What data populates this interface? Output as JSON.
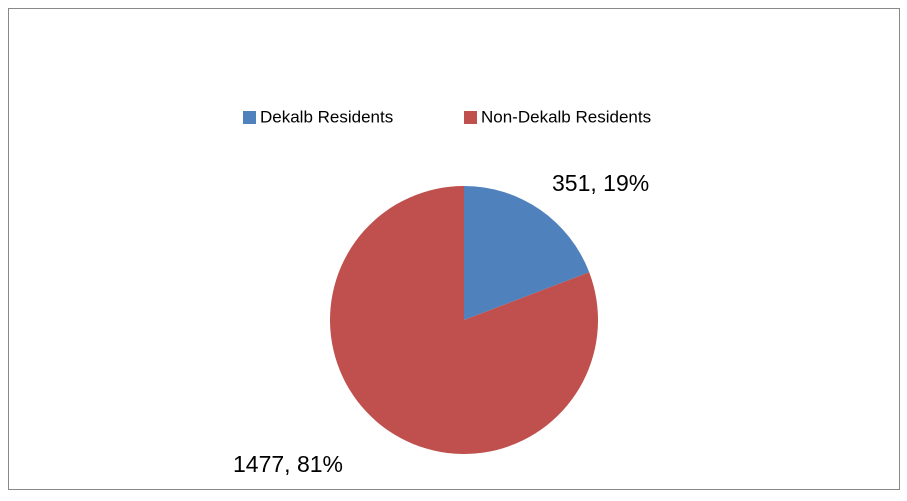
{
  "chart_data": {
    "type": "pie",
    "categories": [
      "Dekalb Residents",
      "Non-Dekalb Residents"
    ],
    "values": [
      351,
      1477
    ],
    "value_labels": [
      "351, 19%",
      "1477, 81%"
    ],
    "colors": [
      "#4f81bd",
      "#c0504d"
    ],
    "legend": "top"
  }
}
